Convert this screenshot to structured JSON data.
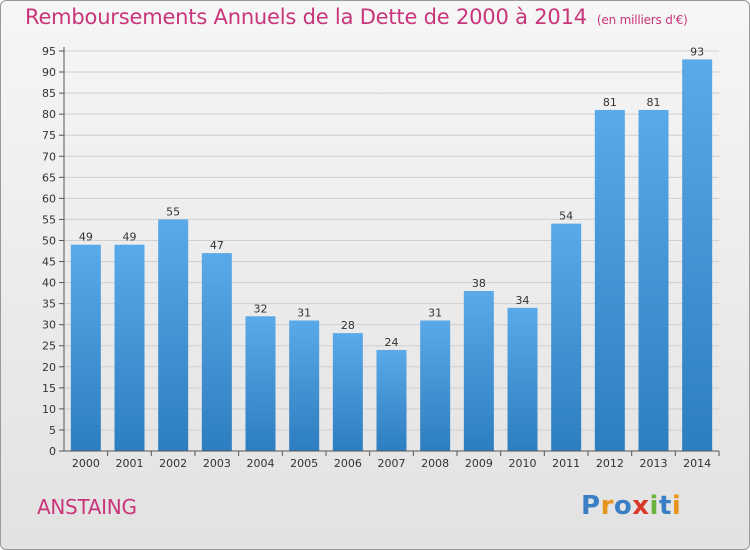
{
  "title": "Remboursements Annuels de la Dette de 2000 à 2014",
  "subtitle": "(en milliers d'€)",
  "commune": "ANSTAING",
  "logo": {
    "text": "Proxiti",
    "letters": [
      {
        "ch": "P",
        "color": "#3a7fc4"
      },
      {
        "ch": "r",
        "color": "#e8941a"
      },
      {
        "ch": "o",
        "color": "#3a7fc4"
      },
      {
        "ch": "x",
        "color": "#d93b2b"
      },
      {
        "ch": "i",
        "color": "#6cb33f"
      },
      {
        "ch": "t",
        "color": "#3a7fc4"
      },
      {
        "ch": "i",
        "color": "#e8941a"
      }
    ]
  },
  "colors": {
    "accent": "#c8357a",
    "bar_top": "#5aa9e8",
    "bar_bottom": "#2d7ec0"
  },
  "chart_data": {
    "type": "bar",
    "categories": [
      "2000",
      "2001",
      "2002",
      "2003",
      "2004",
      "2005",
      "2006",
      "2007",
      "2008",
      "2009",
      "2010",
      "2011",
      "2012",
      "2013",
      "2014"
    ],
    "values": [
      49,
      49,
      55,
      47,
      32,
      31,
      28,
      24,
      31,
      38,
      34,
      54,
      81,
      81,
      93
    ],
    "ylim": [
      0,
      95
    ],
    "ytick_step": 5,
    "grid": true,
    "data_labels": true
  }
}
